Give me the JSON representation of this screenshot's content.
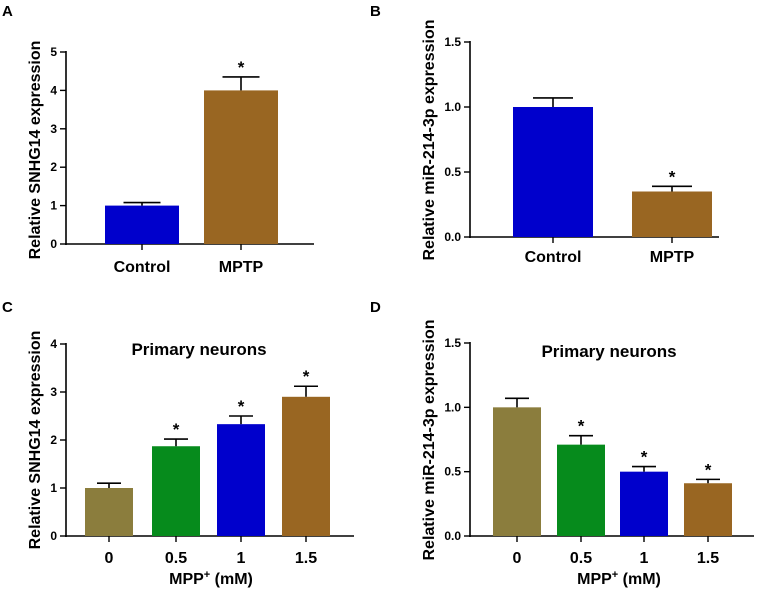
{
  "chart_data": [
    {
      "panel": "A",
      "type": "bar",
      "title": "",
      "ylabel": "Relative SNHG14 expression",
      "xlabel": "",
      "xlabel_sup": "",
      "xlabel_suffix": "",
      "ylim": [
        0,
        5
      ],
      "yticks": [
        0,
        1,
        2,
        3,
        4,
        5
      ],
      "ytick_labels": [
        "0",
        "1",
        "2",
        "3",
        "4",
        "5"
      ],
      "categories": [
        "Control",
        "MPTP"
      ],
      "values": [
        1.0,
        4.0
      ],
      "errors": [
        0.08,
        0.35
      ],
      "colors": [
        "#0000cc",
        "#996622"
      ],
      "significance": [
        "",
        "*"
      ]
    },
    {
      "panel": "B",
      "type": "bar",
      "title": "",
      "ylabel": "Relative miR-214-3p expression",
      "xlabel": "",
      "xlabel_sup": "",
      "xlabel_suffix": "",
      "ylim": [
        0,
        1.5
      ],
      "yticks": [
        0,
        0.5,
        1.0,
        1.5
      ],
      "ytick_labels": [
        "0.0",
        "0.5",
        "1.0",
        "1.5"
      ],
      "categories": [
        "Control",
        "MPTP"
      ],
      "values": [
        1.0,
        0.35
      ],
      "errors": [
        0.07,
        0.04
      ],
      "colors": [
        "#0000cc",
        "#996622"
      ],
      "significance": [
        "",
        "*"
      ]
    },
    {
      "panel": "C",
      "type": "bar",
      "title": "Primary neurons",
      "ylabel": "Relative SNHG14 expression",
      "xlabel": "MPP",
      "xlabel_sup": "+",
      "xlabel_suffix": " (mM)",
      "ylim": [
        0,
        4
      ],
      "yticks": [
        0,
        1,
        2,
        3,
        4
      ],
      "ytick_labels": [
        "0",
        "1",
        "2",
        "3",
        "4"
      ],
      "categories": [
        "0",
        "0.5",
        "1",
        "1.5"
      ],
      "values": [
        1.0,
        1.87,
        2.33,
        2.9
      ],
      "errors": [
        0.1,
        0.15,
        0.17,
        0.22
      ],
      "colors": [
        "#8b7d3d",
        "#068b1c",
        "#0000cc",
        "#996622"
      ],
      "significance": [
        "",
        "*",
        "*",
        "*"
      ]
    },
    {
      "panel": "D",
      "type": "bar",
      "title": "Primary neurons",
      "ylabel": "Relative miR-214-3p expression",
      "xlabel": "MPP",
      "xlabel_sup": "+",
      "xlabel_suffix": " (mM)",
      "ylim": [
        0,
        1.5
      ],
      "yticks": [
        0,
        0.5,
        1.0,
        1.5
      ],
      "ytick_labels": [
        "0.0",
        "0.5",
        "1.0",
        "1.5"
      ],
      "categories": [
        "0",
        "0.5",
        "1",
        "1.5"
      ],
      "values": [
        1.0,
        0.71,
        0.5,
        0.41
      ],
      "errors": [
        0.07,
        0.07,
        0.04,
        0.03
      ],
      "colors": [
        "#8b7d3d",
        "#068b1c",
        "#0000cc",
        "#996622"
      ],
      "significance": [
        "",
        "*",
        "*",
        "*"
      ]
    }
  ]
}
